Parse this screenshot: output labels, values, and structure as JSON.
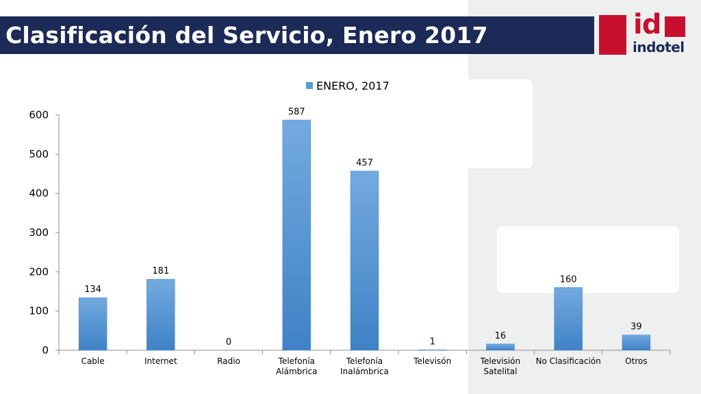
{
  "header": {
    "title": "Clasificación del Servicio, Enero 2017"
  },
  "logo": {
    "mark": "id",
    "word": "indotel"
  },
  "colors": {
    "title_bg": "#1c2a57",
    "brand_red": "#c8102e",
    "bar": "#5b9bd5",
    "panel": "#eef0f0"
  },
  "chart_data": {
    "type": "bar",
    "categories": [
      [
        "Cable"
      ],
      [
        "Internet"
      ],
      [
        "Radio"
      ],
      [
        "Telefonía",
        "Alámbrica"
      ],
      [
        "Telefonía",
        "Inalámbrica"
      ],
      [
        "Televisón"
      ],
      [
        "Televisión",
        "Satelital"
      ],
      [
        "No Clasificación"
      ],
      [
        "Otros"
      ]
    ],
    "series": [
      {
        "name": "ENERO, 2017",
        "values": [
          134,
          181,
          0,
          587,
          457,
          1,
          16,
          160,
          39
        ]
      }
    ],
    "ylim": [
      0,
      600
    ],
    "yticks": [
      0,
      100,
      200,
      300,
      400,
      500,
      600
    ],
    "grid": false,
    "legend": "top-center"
  }
}
